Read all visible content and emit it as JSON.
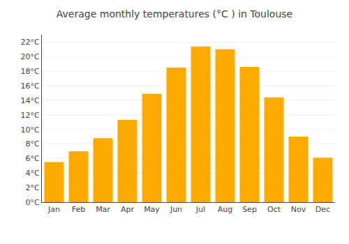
{
  "chart_data": {
    "type": "bar",
    "title": "Average monthly temperatures (°C ) in Toulouse",
    "categories": [
      "Jan",
      "Feb",
      "Mar",
      "Apr",
      "May",
      "Jun",
      "Jul",
      "Aug",
      "Sep",
      "Oct",
      "Nov",
      "Dec"
    ],
    "values": [
      5.5,
      7.0,
      8.8,
      11.3,
      14.9,
      18.5,
      21.4,
      21.0,
      18.6,
      14.4,
      9.0,
      6.1
    ],
    "color": "#FFAA00",
    "ylim": [
      0,
      23
    ],
    "yticks": [
      {
        "value": 0,
        "label": "0°C"
      },
      {
        "value": 2,
        "label": "2°C"
      },
      {
        "value": 4,
        "label": "4°C"
      },
      {
        "value": 6,
        "label": "6°C"
      },
      {
        "value": 8,
        "label": "8°C"
      },
      {
        "value": 10,
        "label": "10°C"
      },
      {
        "value": 12,
        "label": "12°C"
      },
      {
        "value": 14,
        "label": "14°C"
      },
      {
        "value": 16,
        "label": "16°C"
      },
      {
        "value": 18,
        "label": "18°C"
      },
      {
        "value": 20,
        "label": "20°C"
      },
      {
        "value": 22,
        "label": "22°C"
      }
    ],
    "grid": true
  }
}
